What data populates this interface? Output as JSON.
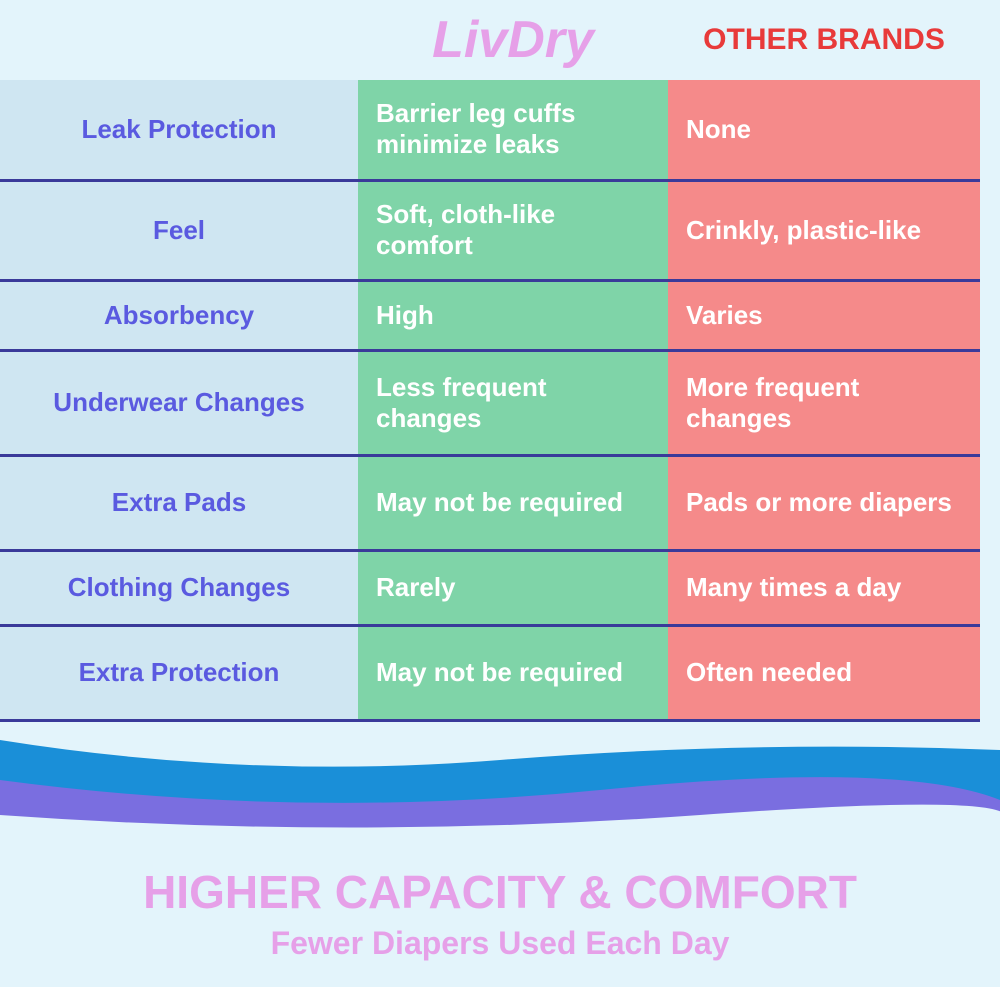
{
  "header": {
    "brand": "LivDry",
    "other": "OTHER BRANDS"
  },
  "table": {
    "rows": [
      [
        "Leak Protection",
        "Barrier leg cuffs minimize leaks",
        "None"
      ],
      [
        "Feel",
        "Soft, cloth-like comfort",
        "Crinkly, plastic-like"
      ],
      [
        "Absorbency",
        "High",
        "Varies"
      ],
      [
        "Underwear Changes",
        "Less frequent changes",
        "More frequent changes"
      ],
      [
        "Extra Pads",
        "May not be required",
        "Pads or more diapers"
      ],
      [
        "Clothing Changes",
        "Rarely",
        "Many times a day"
      ],
      [
        "Extra Protection",
        "May not be required",
        "Often needed"
      ]
    ]
  },
  "footer": {
    "title": "HIGHER CAPACITY & COMFORT",
    "subtitle": "Fewer Diapers Used Each Day"
  }
}
